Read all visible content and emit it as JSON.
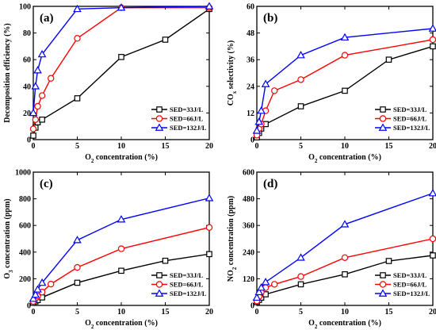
{
  "colors": {
    "black": "#000000",
    "red": "#ff0000",
    "blue": "#0000ff"
  },
  "legend_markers": [
    "square",
    "circle",
    "triangle"
  ],
  "chart_data": [
    {
      "type": "line",
      "panel_label": "(a)",
      "xlabel": "O2 concentration (%)",
      "xlabel_parts": [
        "O",
        "2",
        " concentration (%)"
      ],
      "ylabel": "Decomposition efficiency (%)",
      "ylabel_parts": [
        "Decomposition efficiency (%)"
      ],
      "xlim": [
        0,
        20
      ],
      "ylim": [
        0,
        100
      ],
      "xticks": [
        0,
        5,
        10,
        15,
        20
      ],
      "yticks": [
        0,
        20,
        40,
        60,
        80,
        100
      ],
      "legend_position": "bottom-right",
      "series": [
        {
          "name": "SED=33J/L",
          "color": "#000000",
          "marker": "square",
          "x": [
            0,
            0.25,
            0.5,
            1,
            5,
            10,
            15,
            20
          ],
          "y": [
            3,
            9,
            13,
            15,
            31,
            62,
            75,
            98
          ]
        },
        {
          "name": "SED=66J/L",
          "color": "#ff0000",
          "marker": "circle",
          "x": [
            0,
            0.25,
            0.5,
            1,
            2,
            5,
            10,
            20
          ],
          "y": [
            8,
            15,
            25,
            33,
            46,
            76,
            99,
            99
          ]
        },
        {
          "name": "SED=132J/L",
          "color": "#0000ff",
          "marker": "triangle",
          "x": [
            0,
            0.25,
            0.5,
            1,
            5,
            10,
            20
          ],
          "y": [
            20,
            40,
            52,
            64,
            98,
            99,
            100
          ]
        }
      ]
    },
    {
      "type": "line",
      "panel_label": "(b)",
      "xlabel": "O2 concentration (%)",
      "xlabel_parts": [
        "O",
        "2",
        " concentration (%)"
      ],
      "ylabel": "COx selectivity (%)",
      "ylabel_parts": [
        "CO",
        "x",
        " selectivity (%)"
      ],
      "xlim": [
        0,
        20
      ],
      "ylim": [
        0,
        60
      ],
      "xticks": [
        0,
        5,
        10,
        15,
        20
      ],
      "yticks": [
        0,
        12,
        24,
        36,
        48,
        60
      ],
      "legend_position": "bottom-right",
      "series": [
        {
          "name": "SED=33J/L",
          "color": "#000000",
          "marker": "square",
          "x": [
            0,
            0.25,
            0.5,
            1,
            5,
            10,
            15,
            20
          ],
          "y": [
            1,
            3,
            5,
            7,
            15,
            22,
            36,
            42
          ]
        },
        {
          "name": "SED=66J/L",
          "color": "#ff0000",
          "marker": "circle",
          "x": [
            0,
            0.25,
            0.5,
            1,
            2,
            5,
            10,
            20
          ],
          "y": [
            2,
            5,
            7,
            13,
            22,
            27,
            38,
            45
          ]
        },
        {
          "name": "SED=132J/L",
          "color": "#0000ff",
          "marker": "triangle",
          "x": [
            0,
            0.25,
            0.5,
            1,
            5,
            10,
            20
          ],
          "y": [
            4,
            8,
            13,
            25,
            38,
            46,
            50
          ]
        }
      ]
    },
    {
      "type": "line",
      "panel_label": "(c)",
      "xlabel": "O2 concentration (%)",
      "xlabel_parts": [
        "O",
        "2",
        " concentration (%)"
      ],
      "ylabel": "O3 concentration (ppm)",
      "ylabel_parts": [
        "O",
        "3",
        " concentration (ppm)"
      ],
      "xlim": [
        0,
        20
      ],
      "ylim": [
        0,
        1000
      ],
      "xticks": [
        0,
        5,
        10,
        15,
        20
      ],
      "yticks": [
        0,
        200,
        400,
        600,
        800,
        1000
      ],
      "legend_position": "bottom-right",
      "series": [
        {
          "name": "SED=33J/L",
          "color": "#000000",
          "marker": "square",
          "x": [
            0,
            0.25,
            0.5,
            1,
            5,
            10,
            15,
            20
          ],
          "y": [
            20,
            30,
            40,
            60,
            170,
            260,
            335,
            385
          ]
        },
        {
          "name": "SED=66J/L",
          "color": "#ff0000",
          "marker": "circle",
          "x": [
            0,
            0.25,
            0.5,
            1,
            2,
            5,
            10,
            20
          ],
          "y": [
            30,
            50,
            70,
            100,
            160,
            285,
            425,
            585
          ]
        },
        {
          "name": "SED=132J/L",
          "color": "#0000ff",
          "marker": "triangle",
          "x": [
            0,
            0.25,
            0.5,
            1,
            5,
            10,
            20
          ],
          "y": [
            50,
            80,
            120,
            170,
            490,
            645,
            805
          ]
        }
      ]
    },
    {
      "type": "line",
      "panel_label": "(d)",
      "xlabel": "O2 concentration (%)",
      "xlabel_parts": [
        "O",
        "2",
        " concentration (%)"
      ],
      "ylabel": "NO2 concentration (ppm)",
      "ylabel_parts": [
        "NO",
        "2",
        " concentration (ppm)"
      ],
      "xlim": [
        0,
        20
      ],
      "ylim": [
        0,
        600
      ],
      "xticks": [
        0,
        5,
        10,
        15,
        20
      ],
      "yticks": [
        0,
        120,
        240,
        360,
        480,
        600
      ],
      "legend_position": "bottom-right",
      "series": [
        {
          "name": "SED=33J/L",
          "color": "#000000",
          "marker": "square",
          "x": [
            0,
            0.25,
            0.5,
            1,
            5,
            10,
            15,
            20
          ],
          "y": [
            15,
            25,
            35,
            50,
            95,
            140,
            200,
            225
          ]
        },
        {
          "name": "SED=66J/L",
          "color": "#ff0000",
          "marker": "circle",
          "x": [
            0,
            0.25,
            0.5,
            1,
            2,
            5,
            10,
            20
          ],
          "y": [
            20,
            40,
            60,
            80,
            95,
            130,
            215,
            300
          ]
        },
        {
          "name": "SED=132J/L",
          "color": "#0000ff",
          "marker": "triangle",
          "x": [
            0,
            0.25,
            0.5,
            1,
            5,
            10,
            20
          ],
          "y": [
            35,
            60,
            80,
            105,
            215,
            365,
            505
          ]
        }
      ]
    }
  ]
}
